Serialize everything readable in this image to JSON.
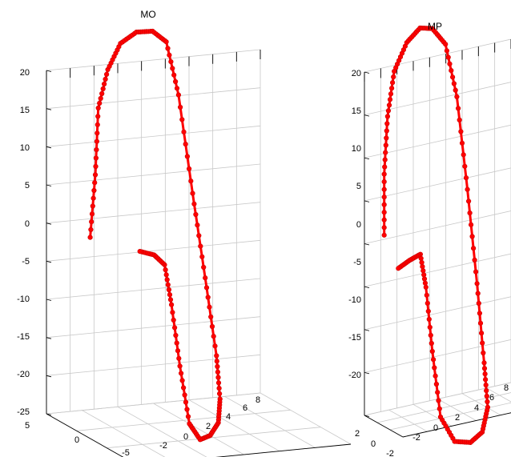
{
  "chart_data": [
    {
      "type": "line3d",
      "title": "MO",
      "zlim": [
        -25,
        20
      ],
      "z_ticks": [
        "20",
        "15",
        "10",
        "5",
        "0",
        "-5",
        "-10",
        "-15",
        "-20",
        "-25"
      ],
      "x_ticks": [
        "5",
        "0",
        "-5"
      ],
      "y_ticks": [
        "-2",
        "0",
        "2",
        "4",
        "6",
        "8"
      ],
      "grid": true,
      "color": "#ff0000",
      "marker": "circle",
      "series": [
        {
          "values": [
            [
              3.8,
              -2.0,
              -1.5
            ],
            [
              3.6,
              -1.8,
              6.8
            ],
            [
              4.0,
              -1.4,
              15.2
            ],
            [
              4.4,
              -0.6,
              19.8
            ],
            [
              5.0,
              0.5,
              22.6
            ],
            [
              5.6,
              1.8,
              23.4
            ],
            [
              6.0,
              3.0,
              23.0
            ],
            [
              6.3,
              4.0,
              21.2
            ],
            [
              6.4,
              4.8,
              14.0
            ],
            [
              6.3,
              5.6,
              1.0
            ],
            [
              6.0,
              6.2,
              -10.0
            ],
            [
              5.3,
              6.5,
              -19.8
            ],
            [
              4.0,
              6.0,
              -24.5
            ],
            [
              2.0,
              4.8,
              -26.0
            ],
            [
              0.0,
              3.2,
              -26.0
            ],
            [
              -1.8,
              1.6,
              -25.0
            ],
            [
              -2.8,
              0.4,
              -22.0
            ],
            [
              -3.2,
              -0.4,
              -14.0
            ],
            [
              -3.0,
              -0.8,
              -6.0
            ],
            [
              -2.6,
              -1.0,
              -1.0
            ],
            [
              -1.8,
              -1.2,
              -0.2
            ],
            [
              -0.6,
              -1.4,
              -0.5
            ]
          ]
        }
      ]
    },
    {
      "type": "line3d",
      "title": "MP",
      "zlim": [
        -20,
        20
      ],
      "z_ticks": [
        "20",
        "15",
        "10",
        "5",
        "0",
        "-5",
        "-10",
        "-15",
        "-20"
      ],
      "x_ticks": [
        "2",
        "0",
        "-2"
      ],
      "y_ticks": [
        "-2",
        "0",
        "2",
        "4",
        "6",
        "8"
      ],
      "grid": true,
      "color": "#ff0000",
      "marker": "circle",
      "series": [
        {
          "values": [
            [
              1.2,
              -2.2,
              1.4
            ],
            [
              1.2,
              -2.2,
              8.5
            ],
            [
              1.4,
              -1.8,
              15.0
            ],
            [
              1.8,
              -1.0,
              19.8
            ],
            [
              2.4,
              0.4,
              22.4
            ],
            [
              2.9,
              1.8,
              23.4
            ],
            [
              3.2,
              3.0,
              22.8
            ],
            [
              3.4,
              4.2,
              20.5
            ],
            [
              3.5,
              5.2,
              14.0
            ],
            [
              3.4,
              6.0,
              3.0
            ],
            [
              3.1,
              6.6,
              -8.0
            ],
            [
              2.5,
              6.8,
              -17.0
            ],
            [
              1.4,
              6.4,
              -21.5
            ],
            [
              0.2,
              5.2,
              -23.4
            ],
            [
              -0.8,
              3.6,
              -23.6
            ],
            [
              -1.6,
              1.8,
              -22.5
            ],
            [
              -2.0,
              0.4,
              -19.0
            ],
            [
              -2.2,
              -0.4,
              -11.0
            ],
            [
              -2.0,
              -0.8,
              -3.5
            ],
            [
              -1.6,
              -1.0,
              0.2
            ],
            [
              -0.8,
              -1.4,
              -0.8
            ],
            [
              0.0,
              -1.8,
              -2.0
            ]
          ]
        }
      ]
    }
  ]
}
